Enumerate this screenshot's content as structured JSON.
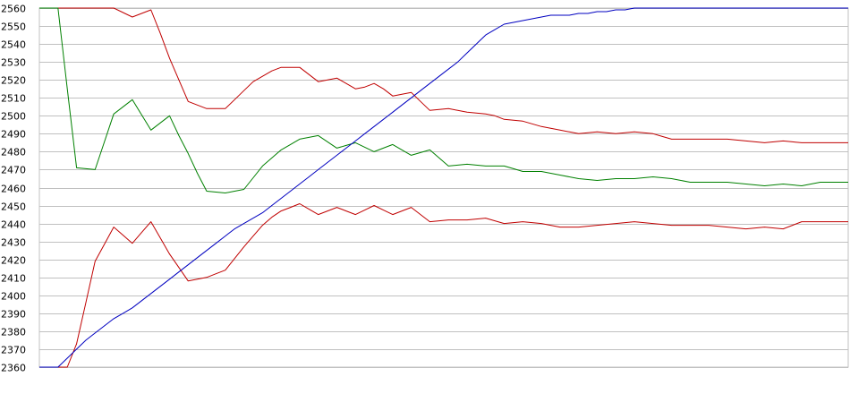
{
  "chart_data": {
    "type": "line",
    "title": "",
    "xlabel": "",
    "ylabel": "",
    "ylim": [
      2360,
      2560
    ],
    "yticks": [
      2360,
      2370,
      2380,
      2390,
      2400,
      2410,
      2420,
      2430,
      2440,
      2450,
      2460,
      2470,
      2480,
      2490,
      2500,
      2510,
      2520,
      2530,
      2540,
      2550,
      2560
    ],
    "grid": true,
    "legend": "none",
    "x": [
      1,
      2,
      3,
      4,
      5,
      6,
      7,
      8,
      9,
      10,
      11,
      12,
      13,
      14,
      15,
      16,
      17,
      18,
      19,
      20,
      21,
      22,
      23,
      24,
      25,
      26,
      27,
      28,
      29,
      30,
      31,
      32,
      33,
      34,
      35,
      36,
      37,
      38,
      39,
      40,
      41,
      42,
      43,
      44,
      45,
      46,
      47,
      48,
      49,
      50,
      51,
      52,
      53,
      54,
      55,
      56,
      57,
      58,
      59,
      60,
      61,
      62,
      63,
      64,
      65,
      66,
      67,
      68,
      69,
      70,
      71,
      72,
      73,
      74,
      75,
      76,
      77,
      78,
      79,
      80,
      81,
      82,
      83,
      84,
      85,
      86,
      87,
      88
    ],
    "series": [
      {
        "color": "#c00000",
        "values": [
          2560,
          2560,
          2560,
          2560,
          2560,
          2560,
          2560,
          2560,
          2560,
          2557.5,
          2555,
          2557,
          2559,
          2546,
          2532,
          2520,
          2508,
          2506,
          2504,
          2504,
          2504,
          2509,
          2514,
          2519,
          2522,
          2525,
          2527,
          2527,
          2527,
          2523,
          2519,
          2520,
          2521,
          2518,
          2515,
          2516,
          2518,
          2515,
          2511,
          2512,
          2513,
          2508,
          2503,
          2503.5,
          2504,
          2503,
          2502,
          2501.5,
          2501,
          2500,
          2498,
          2497.5,
          2497,
          2495.5,
          2494,
          2493,
          2492,
          2491,
          2490,
          2490.5,
          2491,
          2490.5,
          2490,
          2490.5,
          2491,
          2490.5,
          2490,
          2488.5,
          2487,
          2487,
          2487,
          2487,
          2487,
          2487,
          2487,
          2486.5,
          2486,
          2485.5,
          2485,
          2485.5,
          2486,
          2485.5,
          2485,
          2485,
          2485,
          2485,
          2485,
          2485
        ]
      },
      {
        "color": "#008000",
        "values": [
          2560,
          2560,
          2560,
          2515,
          2471,
          2470.5,
          2470,
          2485.5,
          2501,
          2505,
          2509,
          2500.5,
          2492,
          2496,
          2500,
          2489,
          2479,
          2468,
          2458,
          2457.5,
          2457,
          2458,
          2459,
          2465.5,
          2472,
          2476.5,
          2481,
          2484,
          2487,
          2488,
          2489,
          2485.5,
          2482,
          2483.5,
          2485,
          2482.5,
          2480,
          2482,
          2484,
          2481,
          2478,
          2479.5,
          2481,
          2476.5,
          2472,
          2472.5,
          2473,
          2472.5,
          2472,
          2472,
          2472,
          2470.5,
          2469,
          2469,
          2469,
          2468,
          2467,
          2466,
          2465,
          2464.5,
          2464,
          2464.5,
          2465,
          2465,
          2465,
          2465.5,
          2466,
          2465.5,
          2465,
          2464,
          2463,
          2463,
          2463,
          2463,
          2463,
          2462.5,
          2462,
          2461.5,
          2461,
          2461.5,
          2462,
          2461.5,
          2461,
          2462,
          2463,
          2463,
          2463,
          2463
        ]
      },
      {
        "color": "#c00000",
        "values": [
          2360,
          2360,
          2360,
          2360,
          2373,
          2396,
          2419,
          2428.5,
          2438,
          2433.5,
          2429,
          2435,
          2441,
          2432,
          2423,
          2415.5,
          2408,
          2409,
          2410,
          2412,
          2414,
          2420.5,
          2427,
          2433,
          2439,
          2443.5,
          2447,
          2449,
          2451,
          2448,
          2445,
          2447,
          2449,
          2447,
          2445,
          2447.5,
          2450,
          2447.5,
          2445,
          2447,
          2449,
          2445,
          2441,
          2441.5,
          2442,
          2442,
          2442,
          2442.5,
          2443,
          2441.5,
          2440,
          2440.5,
          2441,
          2440.5,
          2440,
          2439,
          2438,
          2438,
          2438,
          2438.5,
          2439,
          2439.5,
          2440,
          2440.5,
          2441,
          2440.5,
          2440,
          2439.5,
          2439,
          2439,
          2439,
          2439,
          2439,
          2438.5,
          2438,
          2437.5,
          2437,
          2437.5,
          2438,
          2437.5,
          2437,
          2439,
          2441,
          2441,
          2441,
          2441,
          2441,
          2441
        ]
      },
      {
        "color": "#0000c0",
        "values": [
          2360,
          2360,
          2360,
          2365,
          2370,
          2375,
          2379,
          2383,
          2387,
          2390,
          2393,
          2397,
          2401,
          2405,
          2409,
          2413,
          2417,
          2421,
          2425,
          2429,
          2433,
          2437,
          2440,
          2443,
          2446,
          2450,
          2454,
          2458,
          2462,
          2466,
          2470,
          2474,
          2478,
          2482,
          2486,
          2490,
          2494,
          2498,
          2502,
          2506,
          2510,
          2514,
          2518,
          2522,
          2526,
          2530,
          2535,
          2540,
          2545,
          2548,
          2551,
          2552,
          2553,
          2554,
          2555,
          2556,
          2556,
          2556,
          2557,
          2557,
          2558,
          2558,
          2559,
          2559,
          2560,
          2560,
          2560,
          2560,
          2560,
          2560,
          2560,
          2560,
          2560,
          2560,
          2560,
          2560,
          2560,
          2560,
          2560,
          2560,
          2560,
          2560,
          2560,
          2560,
          2560,
          2560,
          2560,
          2560
        ]
      }
    ]
  }
}
